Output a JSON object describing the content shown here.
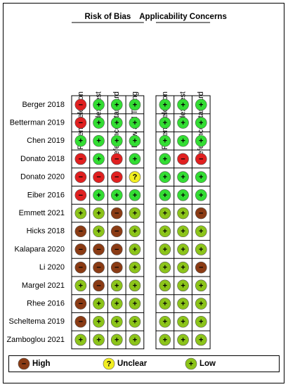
{
  "groups": [
    {
      "title": "Risk of Bias",
      "columns": [
        "Patient Selection",
        "Index Test",
        "Reference Standard",
        "Flow and Timing"
      ]
    },
    {
      "title": "Applicability Concerns",
      "columns": [
        "Patient Selection",
        "Index Test",
        "Reference Standard"
      ]
    }
  ],
  "rows": [
    {
      "study": "Berger 2018",
      "ratings": [
        [
          "−",
          "+",
          "+",
          "+"
        ],
        [
          "+",
          "+",
          "+"
        ]
      ]
    },
    {
      "study": "Betterman 2019",
      "ratings": [
        [
          "−",
          "+",
          "+",
          "+"
        ],
        [
          "+",
          "+",
          "+"
        ]
      ]
    },
    {
      "study": "Chen 2019",
      "ratings": [
        [
          "+",
          "+",
          "+",
          "+"
        ],
        [
          "+",
          "+",
          "+"
        ]
      ]
    },
    {
      "study": "Donato 2018",
      "ratings": [
        [
          "−",
          "+",
          "−",
          "+"
        ],
        [
          "+",
          "−",
          "−"
        ]
      ]
    },
    {
      "study": "Donato 2020",
      "ratings": [
        [
          "−",
          "−",
          "−",
          "?"
        ],
        [
          "+",
          "+",
          "+"
        ]
      ]
    },
    {
      "study": "Eiber 2016",
      "ratings": [
        [
          "−",
          "+",
          "+",
          "+"
        ],
        [
          "+",
          "+",
          "+"
        ]
      ]
    },
    {
      "study": "Emmett 2021",
      "ratings": [
        [
          "+",
          "+",
          "−",
          "+"
        ],
        [
          "+",
          "+",
          "−"
        ]
      ]
    },
    {
      "study": "Hicks 2018",
      "ratings": [
        [
          "−",
          "+",
          "−",
          "+"
        ],
        [
          "+",
          "+",
          "+"
        ]
      ]
    },
    {
      "study": "Kalapara 2020",
      "ratings": [
        [
          "−",
          "−",
          "−",
          "+"
        ],
        [
          "+",
          "+",
          "+"
        ]
      ]
    },
    {
      "study": "Li 2020",
      "ratings": [
        [
          "−",
          "−",
          "−",
          "+"
        ],
        [
          "+",
          "+",
          "−"
        ]
      ]
    },
    {
      "study": "Margel 2021",
      "ratings": [
        [
          "+",
          "−",
          "+",
          "+"
        ],
        [
          "+",
          "+",
          "+"
        ]
      ]
    },
    {
      "study": "Rhee 2016",
      "ratings": [
        [
          "−",
          "+",
          "+",
          "+"
        ],
        [
          "+",
          "+",
          "+"
        ]
      ]
    },
    {
      "study": "Scheltema 2019",
      "ratings": [
        [
          "−",
          "+",
          "+",
          "+"
        ],
        [
          "+",
          "+",
          "+"
        ]
      ]
    },
    {
      "study": "Zamboglou 2021",
      "ratings": [
        [
          "+",
          "+",
          "+",
          "+"
        ],
        [
          "+",
          "+",
          "+"
        ]
      ]
    }
  ],
  "legend": [
    {
      "symbol": "−",
      "label": "High"
    },
    {
      "symbol": "?",
      "label": "Unclear"
    },
    {
      "symbol": "+",
      "label": "Low"
    }
  ]
}
